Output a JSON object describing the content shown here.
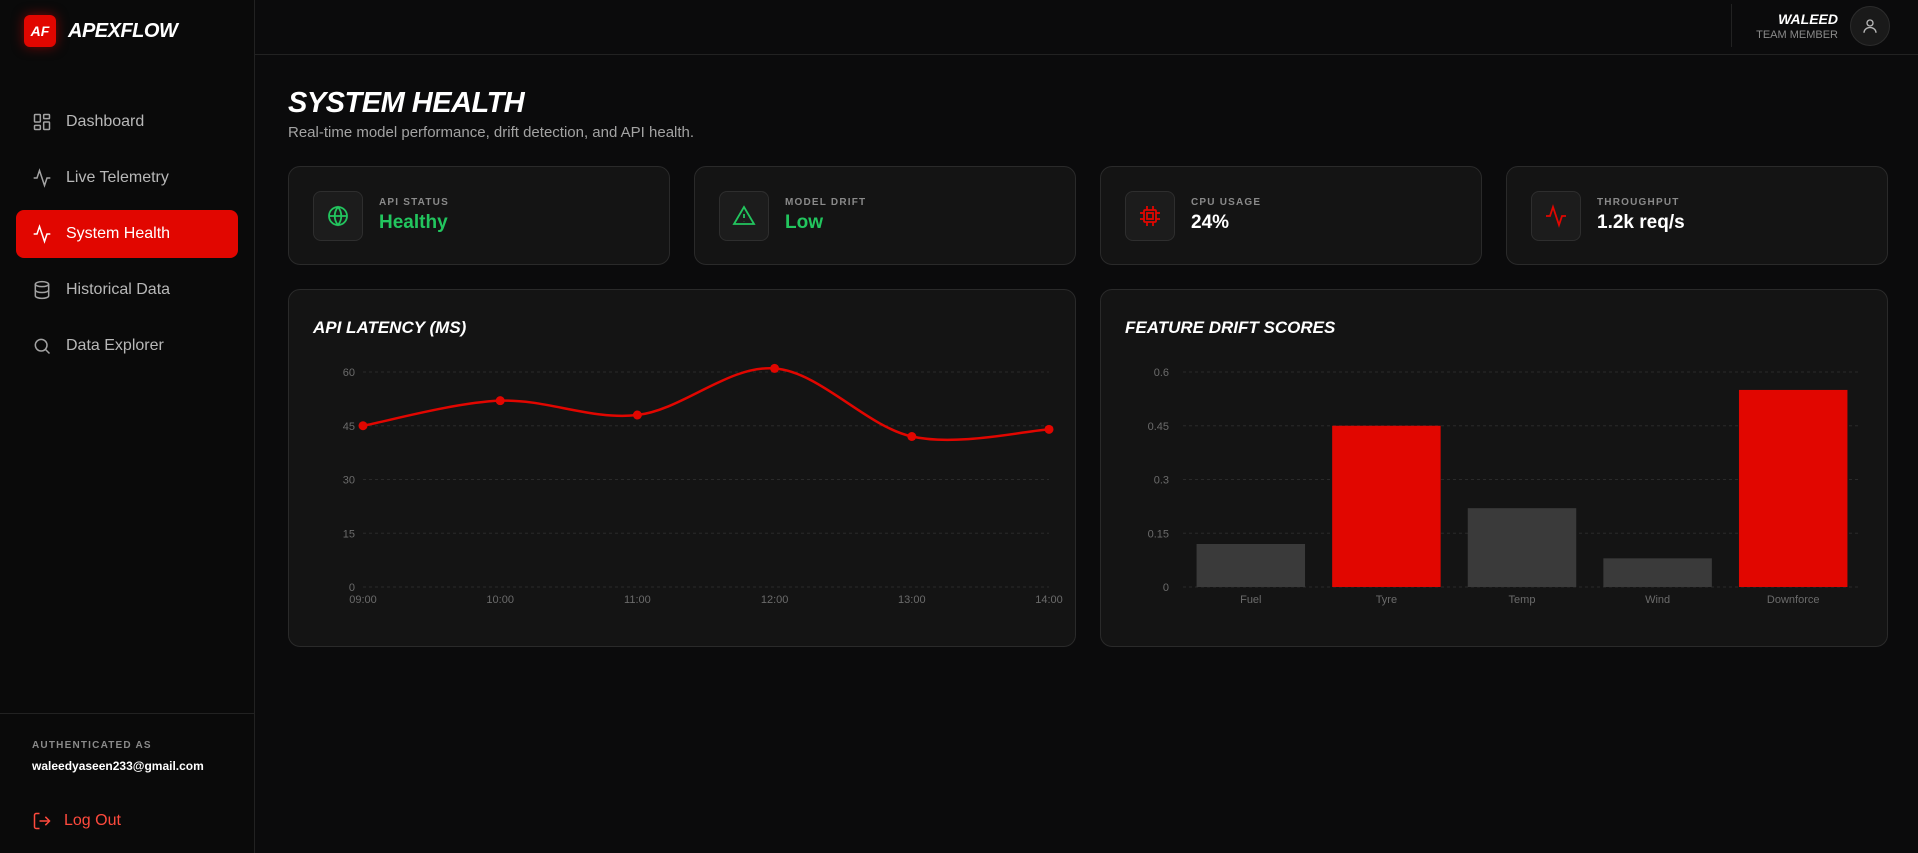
{
  "brand": {
    "logo": "AF",
    "name": "APEXFLOW"
  },
  "nav": [
    {
      "label": "Dashboard",
      "icon": "grid-icon",
      "active": false
    },
    {
      "label": "Live Telemetry",
      "icon": "activity-icon",
      "active": false
    },
    {
      "label": "System Health",
      "icon": "activity-icon",
      "active": true
    },
    {
      "label": "Historical Data",
      "icon": "database-icon",
      "active": false
    },
    {
      "label": "Data Explorer",
      "icon": "search-icon",
      "active": false
    }
  ],
  "auth": {
    "label": "AUTHENTICATED AS",
    "email": "waleedyaseen233@gmail.com",
    "logout": "Log Out"
  },
  "user": {
    "name": "WALEED",
    "role": "TEAM MEMBER"
  },
  "page": {
    "title": "SYSTEM HEALTH",
    "subtitle": "Real-time model performance, drift detection, and API health."
  },
  "stats": [
    {
      "label": "API STATUS",
      "value": "Healthy",
      "icon": "globe-icon",
      "icon_color": "#22c55e",
      "value_color": "green"
    },
    {
      "label": "MODEL DRIFT",
      "value": "Low",
      "icon": "alert-triangle-icon",
      "icon_color": "#22c55e",
      "value_color": "green"
    },
    {
      "label": "CPU USAGE",
      "value": "24%",
      "icon": "cpu-icon",
      "icon_color": "#e10600",
      "value_color": "white"
    },
    {
      "label": "THROUGHPUT",
      "value": "1.2k req/s",
      "icon": "activity-icon",
      "icon_color": "#e10600",
      "value_color": "white"
    }
  ],
  "colors": {
    "accent": "#e10600",
    "success": "#22c55e",
    "bar_muted": "#3a3a3a"
  },
  "chart_data": [
    {
      "type": "line",
      "title": "API LATENCY (MS)",
      "x": [
        "09:00",
        "10:00",
        "11:00",
        "12:00",
        "13:00",
        "14:00"
      ],
      "series": [
        {
          "values": [
            45,
            52,
            48,
            61,
            42,
            44
          ]
        }
      ],
      "yticks": [
        "0",
        "15",
        "30",
        "45",
        "60"
      ],
      "ylim": [
        0,
        60
      ],
      "grid": true,
      "color": "#e10600"
    },
    {
      "type": "bar",
      "title": "FEATURE DRIFT SCORES",
      "categories": [
        "Fuel",
        "Tyre",
        "Temp",
        "Wind",
        "Downforce"
      ],
      "values": [
        0.12,
        0.45,
        0.22,
        0.08,
        0.55
      ],
      "highlight": [
        false,
        true,
        false,
        false,
        true
      ],
      "yticks": [
        "0",
        "0.15",
        "0.3",
        "0.45",
        "0.6"
      ],
      "ylim": [
        0,
        0.6
      ],
      "grid": true
    }
  ]
}
